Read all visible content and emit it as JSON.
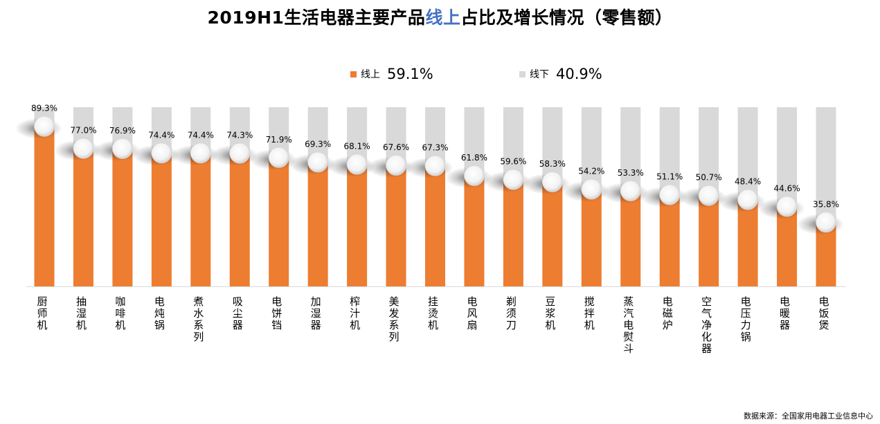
{
  "title_pre": "2019H1生活电器主要产品",
  "title_hl": "线上",
  "title_post": "占比及增长情况（零售额）",
  "legend": [
    {
      "label": "线上",
      "value": "59.1%",
      "color": "#ED7D31"
    },
    {
      "label": "线下",
      "value": "40.9%",
      "color": "#D9D9D9"
    }
  ],
  "source": "数据来源：全国家用电器工业信息中心",
  "chart_data": {
    "type": "bar",
    "stacked": true,
    "ylim": [
      0,
      100
    ],
    "grid": false,
    "legend_position": "top",
    "categories": [
      "厨师机",
      "抽湿机",
      "咖啡机",
      "电炖锅",
      "煮水系列",
      "吸尘器",
      "电饼铛",
      "加湿器",
      "榨汁机",
      "美发系列",
      "挂烫机",
      "电风扇",
      "剃须刀",
      "豆浆机",
      "搅拌机",
      "蒸汽电熨斗",
      "电磁炉",
      "空气净化器",
      "电压力锅",
      "电暖器",
      "电饭煲"
    ],
    "series": [
      {
        "name": "线上",
        "color": "#ED7D31",
        "values": [
          89.3,
          77.0,
          76.9,
          74.4,
          74.4,
          74.3,
          71.9,
          69.3,
          68.1,
          67.6,
          67.3,
          61.8,
          59.6,
          58.3,
          54.2,
          53.3,
          51.1,
          50.7,
          48.4,
          44.6,
          35.8
        ]
      },
      {
        "name": "线下",
        "color": "#D9D9D9",
        "values": [
          10.7,
          23.0,
          23.1,
          25.6,
          25.6,
          25.7,
          28.1,
          30.7,
          31.9,
          32.4,
          32.7,
          38.2,
          40.4,
          41.7,
          45.8,
          46.7,
          48.9,
          49.3,
          51.6,
          55.4,
          64.2
        ]
      }
    ],
    "data_labels": [
      "89.3%",
      "77.0%",
      "76.9%",
      "74.4%",
      "74.4%",
      "74.3%",
      "71.9%",
      "69.3%",
      "68.1%",
      "67.6%",
      "67.3%",
      "61.8%",
      "59.6%",
      "58.3%",
      "54.2%",
      "53.3%",
      "51.1%",
      "50.7%",
      "48.4%",
      "44.6%",
      "35.8%"
    ]
  }
}
